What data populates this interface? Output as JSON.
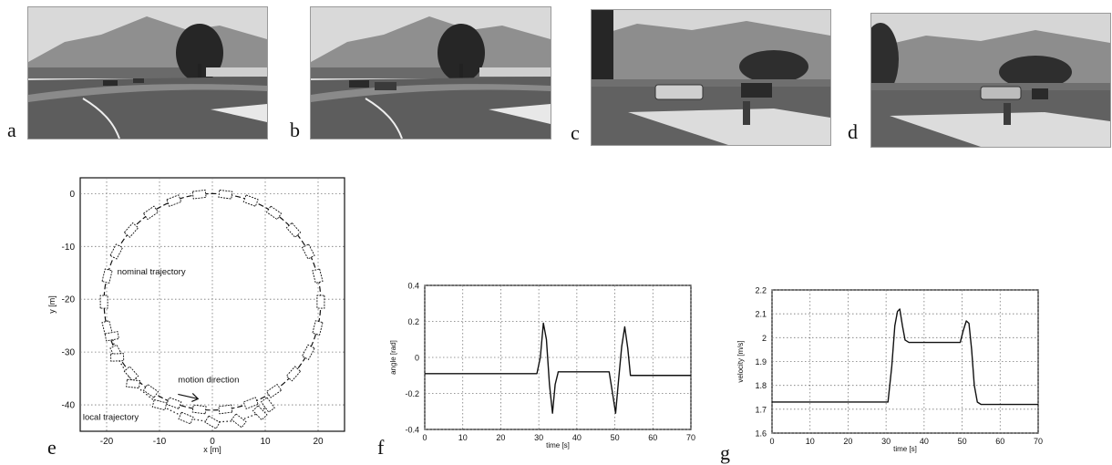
{
  "panel_labels": [
    "a",
    "b",
    "c",
    "d",
    "e",
    "f",
    "g"
  ],
  "photos": [
    {
      "id": "a",
      "scene": "road curve, two cars approaching in distance"
    },
    {
      "id": "b",
      "scene": "road curve, cars closer"
    },
    {
      "id": "c",
      "scene": "car and pedestrian crossing near paved area"
    },
    {
      "id": "d",
      "scene": "car and pedestrian further ahead"
    }
  ],
  "chart_data": [
    {
      "panel": "e",
      "type": "scatter",
      "title": "",
      "xlabel": "x [m]",
      "ylabel": "y [m]",
      "xlim": [
        -25,
        25
      ],
      "ylim": [
        -45,
        3
      ],
      "xticks": [
        -20,
        -10,
        0,
        10,
        20
      ],
      "yticks": [
        0,
        -10,
        -20,
        -30,
        -40
      ],
      "grid": true,
      "annotations": [
        {
          "text": "nominal trajectory",
          "x": -18,
          "y": -15.3
        },
        {
          "text": "motion direction",
          "x": -6.5,
          "y": -35.8
        },
        {
          "text": "local trajectory",
          "x": -24.5,
          "y": -42.8
        }
      ],
      "series": [
        {
          "name": "nominal trajectory",
          "center": [
            0,
            -20.5
          ],
          "radius": 20.5
        },
        {
          "name": "local trajectory",
          "points": [
            [
              -19,
              -27
            ],
            [
              -18,
              -31
            ],
            [
              -15,
              -36
            ],
            [
              -10,
              -40
            ],
            [
              -5,
              -42.5
            ],
            [
              0,
              -43.3
            ],
            [
              5,
              -43
            ],
            [
              9,
              -41.5
            ],
            [
              10.5,
              -40
            ]
          ]
        }
      ]
    },
    {
      "panel": "f",
      "type": "line",
      "title": "",
      "xlabel": "time [s]",
      "ylabel": "angle [rad]",
      "xlim": [
        0,
        70
      ],
      "ylim": [
        -0.4,
        0.4
      ],
      "xticks": [
        0,
        10,
        20,
        30,
        40,
        50,
        60,
        70
      ],
      "yticks": [
        0.4,
        0.2,
        0,
        -0.2,
        -0.4
      ],
      "grid": true,
      "x": [
        0,
        29.5,
        30.4,
        31.2,
        32.0,
        32.8,
        33.6,
        34.3,
        35,
        35.1,
        48.5,
        49.4,
        50.2,
        51.0,
        51.8,
        52.6,
        53.4,
        54.1,
        54.5,
        70
      ],
      "y": [
        -0.09,
        -0.09,
        0.0,
        0.19,
        0.1,
        -0.15,
        -0.31,
        -0.15,
        -0.09,
        -0.08,
        -0.08,
        -0.2,
        -0.31,
        -0.12,
        0.06,
        0.17,
        0.05,
        -0.1,
        -0.1,
        -0.1
      ]
    },
    {
      "panel": "g",
      "type": "line",
      "title": "",
      "xlabel": "time [s]",
      "ylabel": "velocity [m/s]",
      "xlim": [
        0,
        70
      ],
      "ylim": [
        1.6,
        2.2
      ],
      "xticks": [
        0,
        10,
        20,
        30,
        40,
        50,
        60,
        70
      ],
      "yticks": [
        2.2,
        2.1,
        2,
        1.9,
        1.8,
        1.7,
        1.6
      ],
      "grid": true,
      "x": [
        0,
        30.5,
        31.5,
        32.3,
        33.0,
        33.6,
        34.3,
        35.0,
        36,
        49.5,
        50.3,
        51.1,
        51.8,
        52.5,
        53.2,
        54.0,
        55,
        70
      ],
      "y": [
        1.73,
        1.73,
        1.88,
        2.05,
        2.11,
        2.12,
        2.05,
        1.99,
        1.98,
        1.98,
        2.03,
        2.07,
        2.06,
        1.95,
        1.8,
        1.73,
        1.72,
        1.72
      ]
    }
  ]
}
